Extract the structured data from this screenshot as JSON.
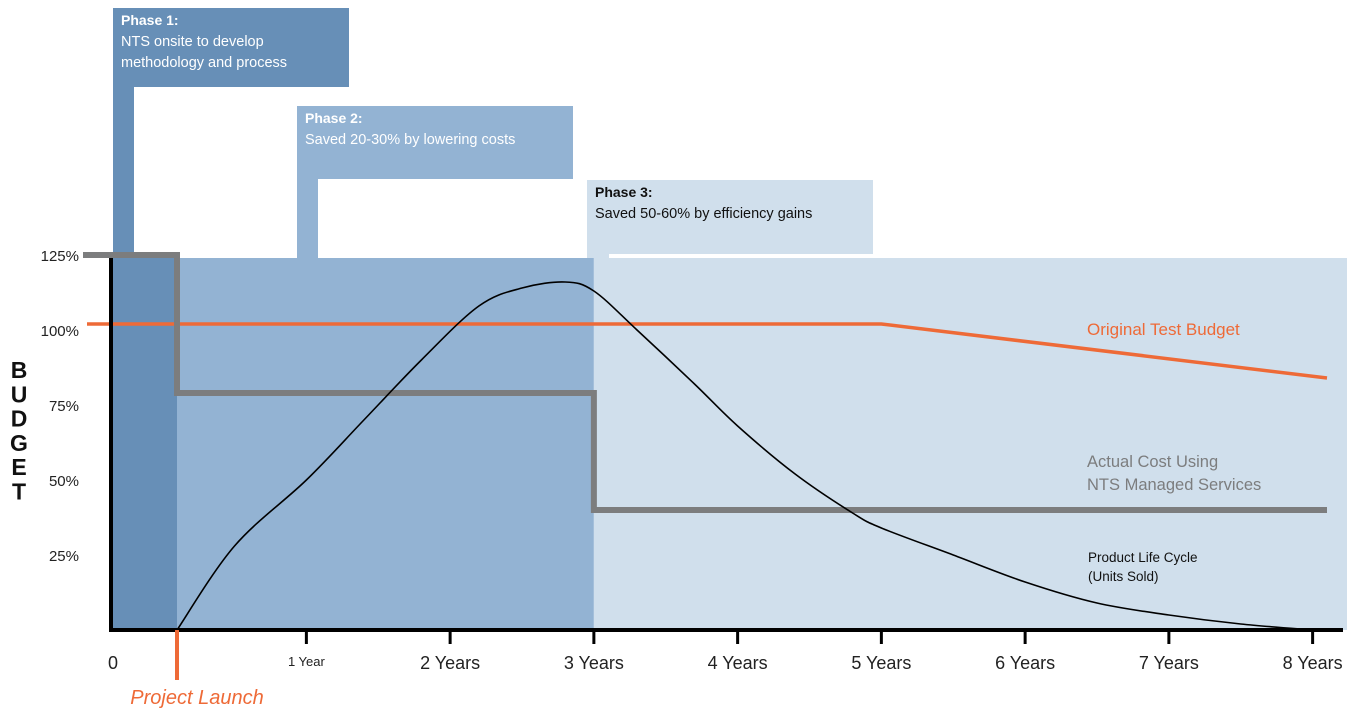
{
  "chart_data": {
    "type": "line",
    "title": "",
    "ylabel": "BUDGET",
    "xlabel": "",
    "xlim": [
      -0.45,
      8.1
    ],
    "ylim": [
      0,
      135
    ],
    "x_ticks": [
      {
        "value": 0,
        "label": "0",
        "small": false
      },
      {
        "value": 1,
        "label": "1 Year",
        "small": true
      },
      {
        "value": 2,
        "label": "2 Years",
        "small": false
      },
      {
        "value": 3,
        "label": "3 Years",
        "small": false
      },
      {
        "value": 4,
        "label": "4 Years",
        "small": false
      },
      {
        "value": 5,
        "label": "5 Years",
        "small": false
      },
      {
        "value": 6,
        "label": "6 Years",
        "small": false
      },
      {
        "value": 7,
        "label": "7 Years",
        "small": false
      },
      {
        "value": 8,
        "label": "8 Years",
        "small": false
      }
    ],
    "y_ticks": [
      {
        "value": 25,
        "label": "25%"
      },
      {
        "value": 50,
        "label": "50%"
      },
      {
        "value": 75,
        "label": "75%"
      },
      {
        "value": 100,
        "label": "100%"
      },
      {
        "value": 125,
        "label": "125%"
      }
    ],
    "phases": [
      {
        "name": "Phase 1:",
        "description": [
          "NTS onsite to develop",
          "methodology and process"
        ],
        "x_start": -0.45,
        "x_end": 0.1,
        "color": "#678fb7",
        "text_color": "#ffffff"
      },
      {
        "name": "Phase  2:",
        "description": [
          "Saved 20-30% by lowering costs"
        ],
        "x_start": 0.1,
        "x_end": 3.0,
        "color": "#93b3d3",
        "text_color": "#ffffff"
      },
      {
        "name": "Phase  3:",
        "description": [
          "Saved 50-60% by efficiency gains"
        ],
        "x_start": 3.0,
        "x_end": 8.1,
        "color": "#d0dfec",
        "text_color": "#111111"
      }
    ],
    "annotation": {
      "text": "Project Launch",
      "x": 0.1,
      "color": "#ee6a37"
    },
    "series": [
      {
        "name": "Original Test Budget",
        "label_lines": [
          "Original Test Budget"
        ],
        "color": "#ee6a37",
        "step": false,
        "x": [
          -0.6,
          5.0,
          8.1
        ],
        "y": [
          102,
          102,
          84
        ]
      },
      {
        "name": "Actual Cost Using NTS Managed Services",
        "label_lines": [
          "Actual Cost Using",
          "NTS Managed Services"
        ],
        "color": "#7c7d7e",
        "step": true,
        "x": [
          -0.6,
          0.1,
          0.1,
          3.0,
          3.0,
          8.1
        ],
        "y": [
          125,
          125,
          79,
          79,
          40,
          40
        ]
      },
      {
        "name": "Product Life Cycle (Units Sold)",
        "label_lines": [
          "Product Life Cycle",
          "(Units Sold)"
        ],
        "color": "#000000",
        "step": false,
        "x": [
          0.1,
          0.5,
          1.0,
          1.4,
          1.8,
          2.2,
          2.5,
          2.8,
          3.0,
          3.3,
          3.7,
          4.0,
          4.4,
          4.8,
          5.0,
          5.5,
          6.0,
          6.5,
          7.0,
          7.5,
          8.0
        ],
        "y": [
          0,
          28,
          50,
          70,
          90,
          108,
          114,
          116,
          113,
          100,
          82,
          68,
          52,
          39,
          34,
          25,
          16,
          9,
          5,
          2,
          0
        ]
      }
    ]
  }
}
